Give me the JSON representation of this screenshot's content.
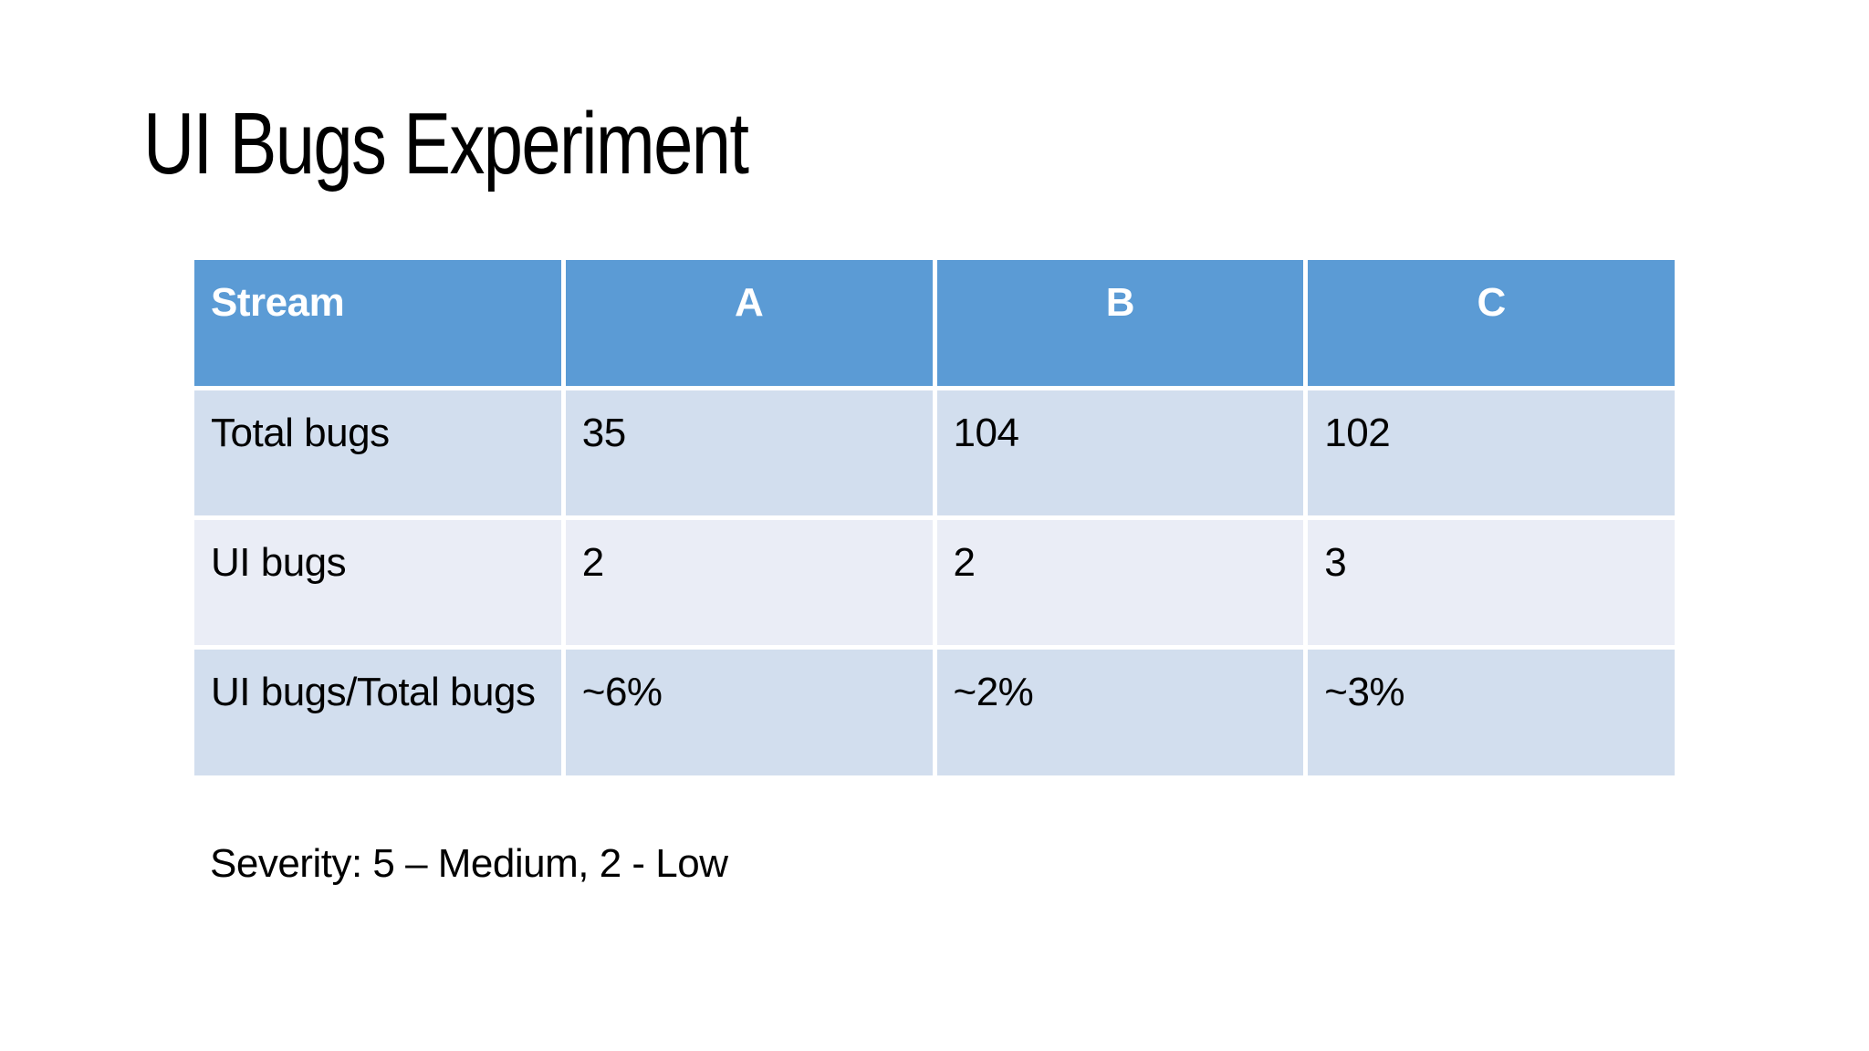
{
  "slide": {
    "title": "UI Bugs Experiment",
    "footnote": "Severity: 5 – Medium, 2 - Low"
  },
  "table": {
    "header": [
      "Stream",
      "A",
      "B",
      "C"
    ],
    "rows": [
      {
        "label": "Total bugs",
        "values": [
          "35",
          "104",
          "102"
        ]
      },
      {
        "label": "UI bugs",
        "values": [
          "2",
          "2",
          "3"
        ]
      },
      {
        "label": "UI bugs/Total bugs",
        "values": [
          "~6%",
          "~2%",
          "~3%"
        ]
      }
    ],
    "colors": {
      "header_bg": "#5B9BD5",
      "header_text": "#FFFFFF",
      "row_odd_bg": "#D2DEEE",
      "row_even_bg": "#EAEDF6",
      "body_text": "#000000"
    }
  }
}
